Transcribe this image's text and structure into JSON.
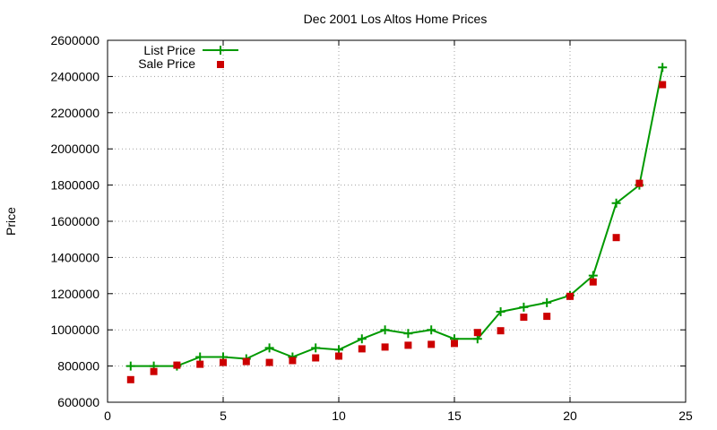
{
  "chart_data": {
    "type": "line",
    "title": "Dec 2001 Los Altos Home Prices",
    "xlabel": "",
    "ylabel": "Price",
    "xlim": [
      0,
      25
    ],
    "ylim": [
      600000,
      2600000
    ],
    "xticks": [
      0,
      5,
      10,
      15,
      20,
      25
    ],
    "yticks": [
      600000,
      800000,
      1000000,
      1200000,
      1400000,
      1600000,
      1800000,
      2000000,
      2200000,
      2400000,
      2600000
    ],
    "grid": true,
    "legend_position": "top-left",
    "series": [
      {
        "name": "List Price",
        "style": "line+plus",
        "color": "#009900",
        "x": [
          1,
          2,
          3,
          4,
          5,
          6,
          7,
          8,
          9,
          10,
          11,
          12,
          13,
          14,
          15,
          16,
          17,
          18,
          19,
          20,
          21,
          22,
          23,
          24
        ],
        "values": [
          800000,
          800000,
          800000,
          850000,
          850000,
          840000,
          900000,
          850000,
          900000,
          890000,
          950000,
          1000000,
          980000,
          1000000,
          950000,
          950000,
          1100000,
          1125000,
          1150000,
          1190000,
          1300000,
          1700000,
          1800000,
          2450000
        ]
      },
      {
        "name": "Sale Price",
        "style": "square",
        "color": "#cc0000",
        "x": [
          1,
          2,
          3,
          4,
          5,
          6,
          7,
          8,
          9,
          10,
          11,
          12,
          13,
          14,
          15,
          16,
          17,
          18,
          19,
          20,
          21,
          22,
          23,
          24
        ],
        "values": [
          725000,
          770000,
          805000,
          810000,
          820000,
          825000,
          820000,
          830000,
          845000,
          855000,
          895000,
          905000,
          915000,
          920000,
          925000,
          985000,
          995000,
          1070000,
          1075000,
          1185000,
          1265000,
          1510000,
          1810000,
          2355000
        ]
      }
    ]
  }
}
